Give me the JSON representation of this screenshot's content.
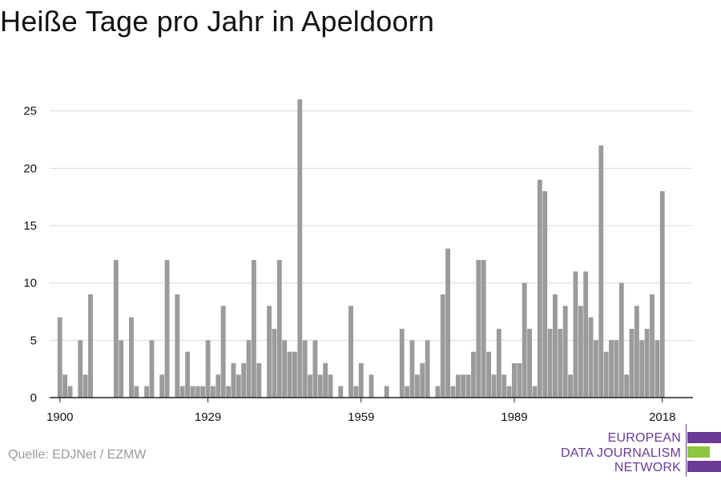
{
  "title": "Heiße Tage pro Jahr in Apeldoorn",
  "source": "Quelle: EDJNet / EZMW",
  "logo": {
    "line1": "EUROPEAN",
    "line2": "DATA JOURNALISM",
    "line3": "NETWORK",
    "colors": [
      "#6a3a96",
      "#8dc63f",
      "#6a3a96"
    ]
  },
  "colors": {
    "bar": "#9b9b9b",
    "grid": "#d9d9d9",
    "axis": "#222222",
    "text": "#111111"
  },
  "chart_data": {
    "type": "bar",
    "title": "Heiße Tage pro Jahr in Apeldoorn",
    "xlabel": "",
    "ylabel": "",
    "ylim": [
      0,
      27
    ],
    "xlim": [
      1898,
      2024
    ],
    "yticks": [
      0,
      5,
      10,
      15,
      20,
      25
    ],
    "xticks": [
      1900,
      1929,
      1959,
      1989,
      2018
    ],
    "grid": true,
    "x": [
      1900,
      1901,
      1902,
      1903,
      1904,
      1905,
      1906,
      1907,
      1908,
      1909,
      1910,
      1911,
      1912,
      1913,
      1914,
      1915,
      1916,
      1917,
      1918,
      1919,
      1920,
      1921,
      1922,
      1923,
      1924,
      1925,
      1926,
      1927,
      1928,
      1929,
      1930,
      1931,
      1932,
      1933,
      1934,
      1935,
      1936,
      1937,
      1938,
      1939,
      1940,
      1941,
      1942,
      1943,
      1944,
      1945,
      1946,
      1947,
      1948,
      1949,
      1950,
      1951,
      1952,
      1953,
      1954,
      1955,
      1956,
      1957,
      1958,
      1959,
      1960,
      1961,
      1962,
      1963,
      1964,
      1965,
      1966,
      1967,
      1968,
      1969,
      1970,
      1971,
      1972,
      1973,
      1974,
      1975,
      1976,
      1977,
      1978,
      1979,
      1980,
      1981,
      1982,
      1983,
      1984,
      1985,
      1986,
      1987,
      1988,
      1989,
      1990,
      1991,
      1992,
      1993,
      1994,
      1995,
      1996,
      1997,
      1998,
      1999,
      2000,
      2001,
      2002,
      2003,
      2004,
      2005,
      2006,
      2007,
      2008,
      2009,
      2010,
      2011,
      2012,
      2013,
      2014,
      2015,
      2016,
      2017,
      2018
    ],
    "values": [
      7,
      2,
      1,
      0,
      5,
      2,
      9,
      0,
      0,
      0,
      0,
      12,
      5,
      0,
      7,
      1,
      0,
      1,
      5,
      0,
      2,
      12,
      0,
      9,
      1,
      4,
      1,
      1,
      1,
      5,
      1,
      2,
      8,
      1,
      3,
      2,
      3,
      5,
      12,
      3,
      0,
      8,
      6,
      12,
      5,
      4,
      4,
      26,
      5,
      2,
      5,
      2,
      3,
      2,
      0,
      1,
      0,
      8,
      1,
      3,
      0,
      2,
      0,
      0,
      1,
      0,
      0,
      6,
      1,
      5,
      2,
      3,
      5,
      0,
      1,
      9,
      13,
      1,
      2,
      2,
      2,
      4,
      12,
      12,
      4,
      2,
      6,
      2,
      1,
      3,
      3,
      10,
      6,
      1,
      19,
      18,
      6,
      9,
      6,
      8,
      2,
      11,
      8,
      11,
      7,
      5,
      22,
      4,
      5,
      5,
      10,
      2,
      6,
      8,
      5,
      6,
      9,
      5,
      18
    ]
  }
}
